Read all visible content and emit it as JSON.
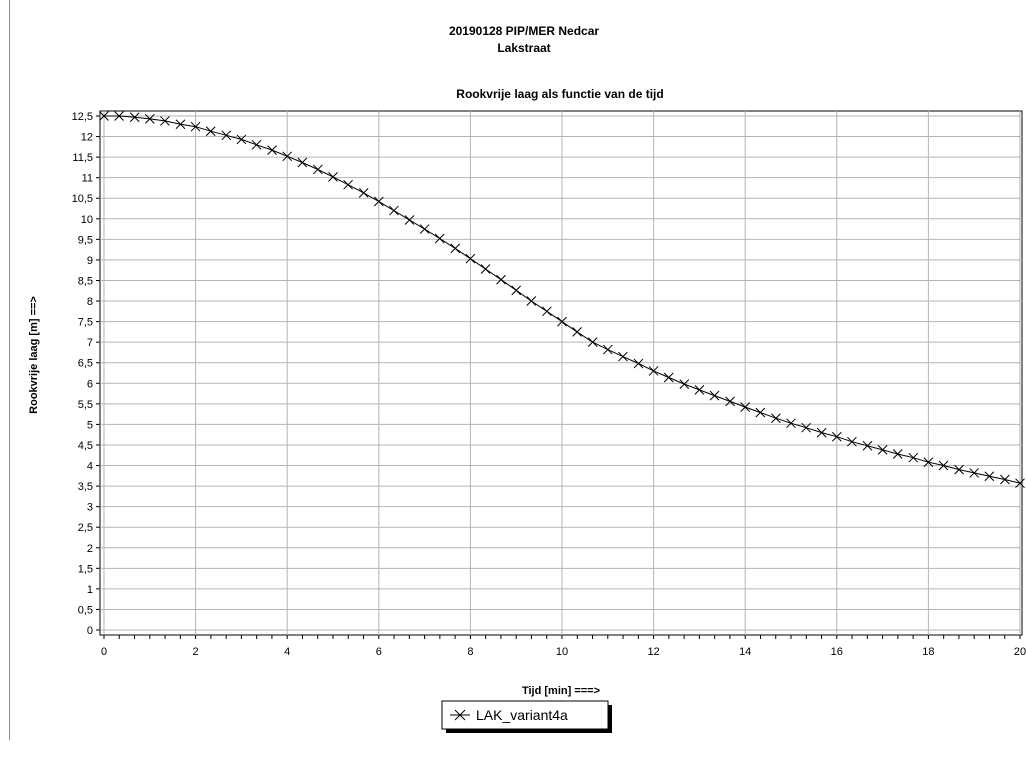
{
  "chart_data": {
    "type": "line",
    "title_line1": "20190128 PIP/MER Nedcar",
    "title_line2": "Lakstraat",
    "subtitle": "Rookvrije laag  als functie van de tijd",
    "xlabel": "Tijd [min] ===>",
    "ylabel": "Rookvrije laag [m] ==>",
    "xlim": [
      0,
      20
    ],
    "ylim": [
      0,
      12.5
    ],
    "x_ticks": [
      "0",
      "2",
      "4",
      "6",
      "8",
      "10",
      "12",
      "14",
      "16",
      "18",
      "20"
    ],
    "y_ticks": [
      "0",
      "0,5",
      "1",
      "1,5",
      "2",
      "2,5",
      "3",
      "3,5",
      "4",
      "4,5",
      "5",
      "5,5",
      "6",
      "6,5",
      "7",
      "7,5",
      "8",
      "8,5",
      "9",
      "9,5",
      "10",
      "10,5",
      "11",
      "11,5",
      "12",
      "12,5"
    ],
    "grid": true,
    "legend_position": "bottom-center",
    "series": [
      {
        "name": "LAK_variant4a",
        "color": "#000000",
        "marker": "x",
        "x": [
          0,
          0.33,
          0.67,
          1.0,
          1.33,
          1.67,
          2.0,
          2.33,
          2.67,
          3.0,
          3.33,
          3.67,
          4.0,
          4.33,
          4.67,
          5.0,
          5.33,
          5.67,
          6.0,
          6.33,
          6.67,
          7.0,
          7.33,
          7.67,
          8.0,
          8.33,
          8.67,
          9.0,
          9.33,
          9.67,
          10.0,
          10.33,
          10.67,
          11.0,
          11.33,
          11.67,
          12.0,
          12.33,
          12.67,
          13.0,
          13.33,
          13.67,
          14.0,
          14.33,
          14.67,
          15.0,
          15.33,
          15.67,
          16.0,
          16.33,
          16.67,
          17.0,
          17.33,
          17.67,
          18.0,
          18.33,
          18.67,
          19.0,
          19.33,
          19.67,
          20.0
        ],
        "y": [
          12.5,
          12.5,
          12.47,
          12.43,
          12.38,
          12.3,
          12.24,
          12.13,
          12.03,
          11.93,
          11.8,
          11.67,
          11.52,
          11.37,
          11.2,
          11.02,
          10.83,
          10.63,
          10.42,
          10.2,
          9.97,
          9.75,
          9.52,
          9.28,
          9.03,
          8.78,
          8.52,
          8.26,
          8.0,
          7.75,
          7.5,
          7.25,
          7.0,
          6.82,
          6.65,
          6.48,
          6.3,
          6.14,
          5.98,
          5.84,
          5.7,
          5.56,
          5.42,
          5.29,
          5.15,
          5.03,
          4.92,
          4.8,
          4.7,
          4.58,
          4.48,
          4.38,
          4.28,
          4.19,
          4.08,
          4.0,
          3.9,
          3.82,
          3.74,
          3.66,
          3.57
        ]
      }
    ]
  }
}
